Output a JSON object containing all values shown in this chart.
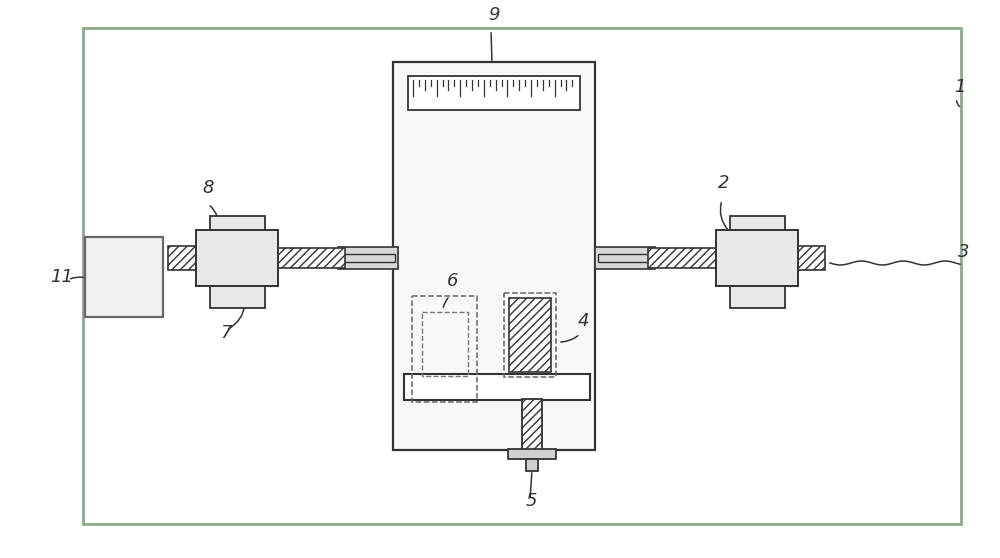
{
  "bg": "#ffffff",
  "frame_ec": "#7a9a7a",
  "frame_fc": "#ffffff",
  "ec": "#333333",
  "lc": "#333333",
  "part_fc": "#f0f0f0",
  "shaft_fc": "#e0e0e0",
  "hatch_fc": "#ffffff",
  "box11_fc": "#f0f0f0",
  "box11_ec": "#555555",
  "center_panel_fc": "#f8f8f8"
}
